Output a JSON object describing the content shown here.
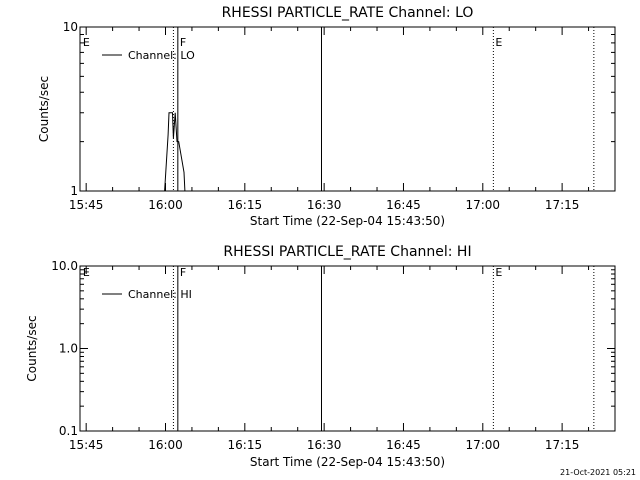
{
  "chart_data": [
    {
      "type": "line",
      "title": "RHESSI PARTICLE_RATE Channel: LO",
      "xlabel": "Start Time (22-Sep-04 15:43:50)",
      "ylabel": "Counts/sec",
      "yscale": "log",
      "ylim": [
        1,
        10
      ],
      "xlim": [
        "15:43:50",
        "17:25:00"
      ],
      "x_ticks": [
        "15:45",
        "16:00",
        "16:15",
        "16:30",
        "16:45",
        "17:00",
        "17:15"
      ],
      "y_ticks": [
        "1",
        "10"
      ],
      "legend": {
        "position": "top-left",
        "entries": [
          "Channel: LO"
        ]
      },
      "markers": [
        {
          "time": "15:44:00",
          "label": "E",
          "style": "none"
        },
        {
          "time": "16:01:30",
          "label": "",
          "style": "dotted"
        },
        {
          "time": "16:02:20",
          "label": "F",
          "style": "solid"
        },
        {
          "time": "16:29:30",
          "label": "",
          "style": "solid"
        },
        {
          "time": "17:02:00",
          "label": "E",
          "style": "dotted"
        },
        {
          "time": "17:21:00",
          "label": "",
          "style": "dotted"
        }
      ],
      "series": [
        {
          "name": "Channel: LO",
          "x": [
            "15:59:50",
            "16:00:30",
            "16:00:40",
            "16:01:20",
            "16:01:30",
            "16:01:50",
            "16:02:10",
            "16:02:30",
            "16:03:30",
            "16:03:40"
          ],
          "y": [
            1,
            2.2,
            3,
            3,
            2.1,
            3,
            2,
            2,
            1.3,
            1
          ]
        }
      ]
    },
    {
      "type": "line",
      "title": "RHESSI PARTICLE_RATE Channel: HI",
      "xlabel": "Start Time (22-Sep-04 15:43:50)",
      "ylabel": "Counts/sec",
      "yscale": "log",
      "ylim": [
        0.1,
        10
      ],
      "xlim": [
        "15:43:50",
        "17:25:00"
      ],
      "x_ticks": [
        "15:45",
        "16:00",
        "16:15",
        "16:30",
        "16:45",
        "17:00",
        "17:15"
      ],
      "y_ticks": [
        "0.1",
        "1.0",
        "10.0"
      ],
      "legend": {
        "position": "top-left",
        "entries": [
          "Channel: HI"
        ]
      },
      "markers": [
        {
          "time": "15:44:00",
          "label": "E",
          "style": "none"
        },
        {
          "time": "16:01:30",
          "label": "",
          "style": "dotted"
        },
        {
          "time": "16:02:20",
          "label": "F",
          "style": "solid"
        },
        {
          "time": "16:29:30",
          "label": "",
          "style": "solid"
        },
        {
          "time": "17:02:00",
          "label": "E",
          "style": "dotted"
        },
        {
          "time": "17:21:00",
          "label": "",
          "style": "dotted"
        }
      ],
      "series": [
        {
          "name": "Channel: HI",
          "x": [],
          "y": []
        }
      ]
    }
  ],
  "timestamp": "21-Oct-2021 05:21"
}
